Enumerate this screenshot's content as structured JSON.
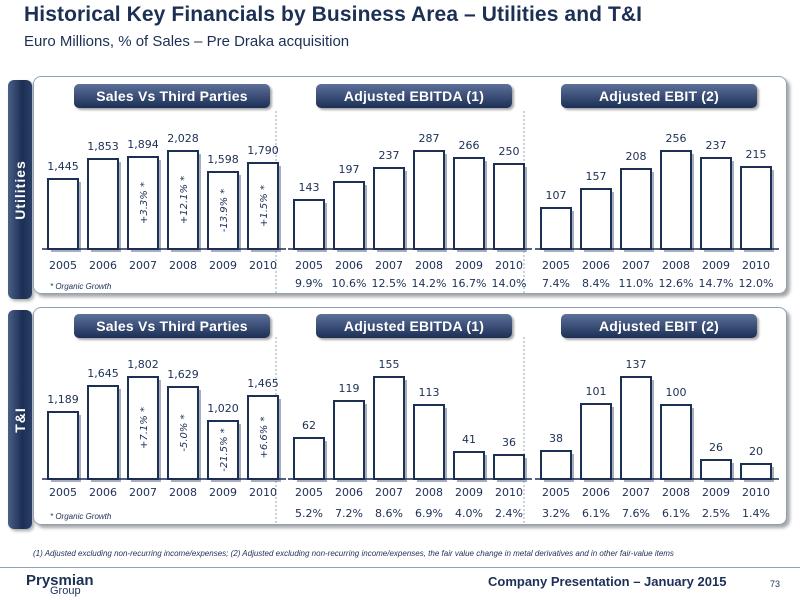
{
  "header": {
    "title": "Historical Key Financials by Business Area – Utilities and T&I",
    "subtitle": "Euro Millions, % of Sales – Pre Draka acquisition"
  },
  "footnote": "(1)   Adjusted excluding non-recurring income/expenses;  (2)   Adjusted excluding non-recurring income/expenses, the fair value change in metal derivatives and in other fair-value items",
  "footer": {
    "brand": "Prysmian",
    "group": "Group",
    "presentation": "Company Presentation – January 2015",
    "page": "73"
  },
  "chart_data": [
    {
      "section": "Utilities",
      "chart_title": "Sales Vs Third Parties",
      "type": "bar",
      "categories": [
        "2005",
        "2006",
        "2007",
        "2008",
        "2009",
        "2010"
      ],
      "values": [
        1445,
        1853,
        1894,
        2028,
        1598,
        1790
      ],
      "value_labels": [
        "1,445",
        "1,853",
        "1,894",
        "2,028",
        "1,598",
        "1,790"
      ],
      "bar_annotations": [
        "",
        "",
        "+3.3% *",
        "+12.1% *",
        "-13.9% *",
        "+1.5% *"
      ],
      "note": "* Organic Growth",
      "bar_color": "#ffffff",
      "edge_color": "#1c2f55"
    },
    {
      "section": "Utilities",
      "chart_title": "Adjusted EBITDA (1)",
      "type": "bar",
      "categories": [
        "2005",
        "2006",
        "2007",
        "2008",
        "2009",
        "2010"
      ],
      "values": [
        143,
        197,
        237,
        287,
        266,
        250
      ],
      "value_labels": [
        "143",
        "197",
        "237",
        "287",
        "266",
        "250"
      ],
      "percent_of_sales": [
        "9.9%",
        "10.6%",
        "12.5%",
        "14.2%",
        "16.7%",
        "14.0%"
      ]
    },
    {
      "section": "Utilities",
      "chart_title": "Adjusted EBIT (2)",
      "type": "bar",
      "categories": [
        "2005",
        "2006",
        "2007",
        "2008",
        "2009",
        "2010"
      ],
      "values": [
        107,
        157,
        208,
        256,
        237,
        215
      ],
      "value_labels": [
        "107",
        "157",
        "208",
        "256",
        "237",
        "215"
      ],
      "percent_of_sales": [
        "7.4%",
        "8.4%",
        "11.0%",
        "12.6%",
        "14.7%",
        "12.0%"
      ]
    },
    {
      "section": "T&I",
      "chart_title": "Sales Vs Third Parties",
      "type": "bar",
      "categories": [
        "2005",
        "2006",
        "2007",
        "2008",
        "2009",
        "2010"
      ],
      "values": [
        1189,
        1645,
        1802,
        1629,
        1020,
        1465
      ],
      "value_labels": [
        "1,189",
        "1,645",
        "1,802",
        "1,629",
        "1,020",
        "1,465"
      ],
      "bar_annotations": [
        "",
        "",
        "+7.1% *",
        "-5.0% *",
        "-21.5% *",
        "+6.6% *"
      ],
      "note": "* Organic Growth"
    },
    {
      "section": "T&I",
      "chart_title": "Adjusted EBITDA (1)",
      "type": "bar",
      "categories": [
        "2005",
        "2006",
        "2007",
        "2008",
        "2009",
        "2010"
      ],
      "values": [
        62,
        119,
        155,
        113,
        41,
        36
      ],
      "value_labels": [
        "62",
        "119",
        "155",
        "113",
        "41",
        "36"
      ],
      "percent_of_sales": [
        "5.2%",
        "7.2%",
        "8.6%",
        "6.9%",
        "4.0%",
        "2.4%"
      ]
    },
    {
      "section": "T&I",
      "chart_title": "Adjusted EBIT (2)",
      "type": "bar",
      "categories": [
        "2005",
        "2006",
        "2007",
        "2008",
        "2009",
        "2010"
      ],
      "values": [
        38,
        101,
        137,
        100,
        26,
        20
      ],
      "value_labels": [
        "38",
        "101",
        "137",
        "100",
        "26",
        "20"
      ],
      "percent_of_sales": [
        "3.2%",
        "6.1%",
        "7.6%",
        "6.1%",
        "2.5%",
        "1.4%"
      ]
    }
  ]
}
